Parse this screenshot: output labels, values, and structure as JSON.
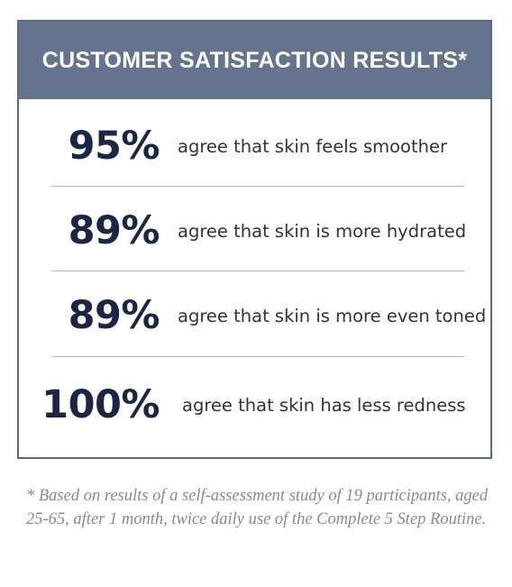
{
  "header": {
    "title": "CUSTOMER SATISFACTION RESULTS*"
  },
  "stats": [
    {
      "value": "95%",
      "text": "agree that skin feels smoother"
    },
    {
      "value": "89%",
      "text": "agree that skin is more hydrated"
    },
    {
      "value": "89%",
      "text": "agree that skin is more even toned"
    },
    {
      "value": "100%",
      "text": "agree that skin has less redness"
    }
  ],
  "footnote": "* Based on results of a self-assessment study of 19 participants, aged 25-65, after 1 month, twice daily use of the Complete 5 Step Routine.",
  "colors": {
    "header_background": "#64748f",
    "card_border": "#5a6b85",
    "stat_value": "#1b2644",
    "footnote_text": "#8a8a8a"
  }
}
